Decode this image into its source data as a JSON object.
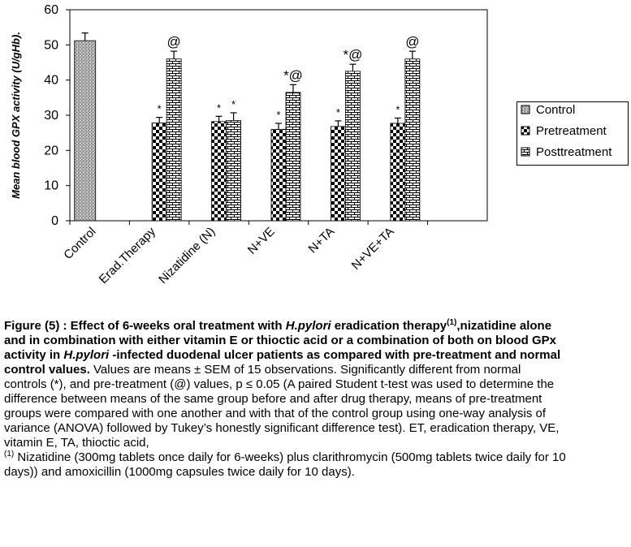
{
  "chart_data": {
    "type": "bar",
    "ylabel": "Mean blood GPX activity (U/gHb).",
    "categories": [
      "Control",
      "Erad.Therapy",
      "Nizatidine (N)",
      "N+VE",
      "N+TA",
      "N+VE+TA",
      null
    ],
    "series": [
      {
        "name": "Control",
        "values": [
          51.2,
          null,
          null,
          null,
          null,
          null,
          null
        ],
        "errors": [
          2.2,
          null,
          null,
          null,
          null,
          null,
          null
        ],
        "annotations": [
          null,
          null,
          null,
          null,
          null,
          null,
          null
        ]
      },
      {
        "name": "Pretreatment",
        "values": [
          null,
          27.8,
          28.2,
          26,
          26.8,
          27.7,
          null
        ],
        "errors": [
          null,
          1.6,
          1.5,
          1.7,
          1.6,
          1.5,
          null
        ],
        "annotations": [
          null,
          "*",
          "*",
          "*",
          "*",
          "*",
          null
        ]
      },
      {
        "name": "Posttreatment",
        "values": [
          null,
          46,
          28.5,
          36.5,
          42.5,
          46,
          null
        ],
        "errors": [
          null,
          2.2,
          2.2,
          2.2,
          2,
          2.2,
          null
        ],
        "annotations": [
          null,
          "@",
          "*",
          "*@",
          "*@",
          "@",
          null
        ]
      }
    ],
    "ylim": [
      0,
      60
    ],
    "yticks": [
      0,
      10,
      20,
      30,
      40,
      50,
      60
    ],
    "legend": "right"
  },
  "caption": {
    "parts": [
      {
        "text": "Figure (5) : Effect of 6-weeks oral treatment with ",
        "bold": true
      },
      {
        "text": "H.pylori",
        "bold": true,
        "italic": true
      },
      {
        "text": " eradication therapy",
        "bold": true
      },
      {
        "text": "(1)",
        "bold": true,
        "sup": true
      },
      {
        "text": ",nizatidine alone and in combination with either vitamin E or thioctic acid or a combination of both on  blood GPx  activity in ",
        "bold": true
      },
      {
        "text": "H.pylori",
        "bold": true,
        "italic": true
      },
      {
        "text": " -infected duodenal ulcer patients as compared with pre-treatment and normal control values.",
        "bold": true
      },
      {
        "text": " Values are means ± SEM of 15 observations. Significantly different from normal controls (*), and pre-treatment (@) values, p ≤ 0.05 (A paired Student t-test was used to determine the difference between means of the same group before and after drug therapy, means of pre-treatment groups were compared with one another and with that of the control group using one-way analysis of variance (ANOVA) followed by Tukey’s honestly significant difference test). ET, eradication therapy, VE, vitamin E, TA, thioctic acid,"
      },
      {
        "text": "(1)",
        "sup": true,
        "newline": true
      },
      {
        "text": " Nizatidine (300mg tablets once daily for 6-weeks) plus clarithromycin (500mg tablets twice daily for 10 days)) and amoxicillin (1000mg capsules twice daily for 10 days)."
      }
    ]
  }
}
